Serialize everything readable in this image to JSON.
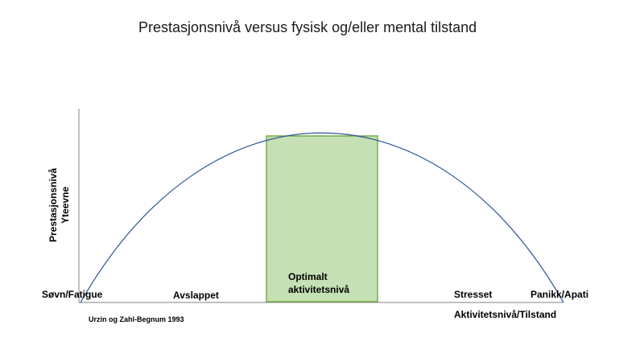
{
  "title": "Prestasjonsnivå versus fysisk og/eller mental tilstand",
  "y_axis": {
    "line1": "Prestasjonsnivå",
    "line2": "Yteevne"
  },
  "x_axis": {
    "label": "Aktivitetsnivå/Tilstand"
  },
  "states": [
    "Søvn/Fatigue",
    "Avslappet",
    "Stresset",
    "Panikk/Apati"
  ],
  "optimal_zone": {
    "line1": "Optimalt",
    "line2": "aktivitetsnivå"
  },
  "source": "Urzin og Zahl-Begnum 1993",
  "colors": {
    "curve": "#2f5597",
    "axis": "#808080",
    "zone_fill": "#c5e0b4",
    "zone_stroke": "#70ad47"
  }
}
